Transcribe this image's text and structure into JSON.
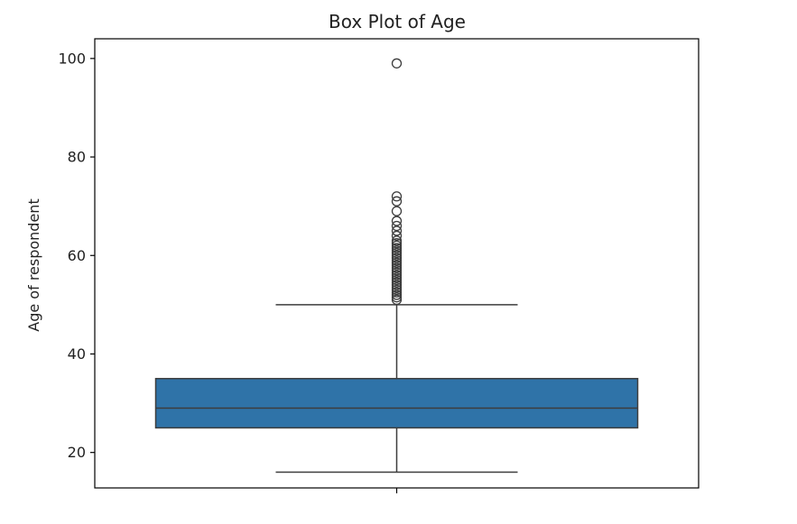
{
  "chart_data": {
    "type": "box",
    "title": "Box Plot of Age",
    "xlabel": "",
    "ylabel": "Age of respondent",
    "ylim": [
      12.8,
      104
    ],
    "yticks": [
      20,
      40,
      60,
      80,
      100
    ],
    "grid": false,
    "box": {
      "q1": 25,
      "median": 29,
      "q3": 35,
      "whisker_low": 16,
      "whisker_high": 50,
      "color": "#2f73a8",
      "edge_color": "#3d3d3d"
    },
    "outliers": [
      51,
      51.5,
      52,
      52.5,
      53,
      53.5,
      54,
      54.5,
      55,
      55.5,
      56,
      56.5,
      57,
      57.5,
      58,
      58.5,
      59,
      59.5,
      60,
      60.5,
      61,
      61.5,
      62,
      62.5,
      63,
      64,
      65,
      66,
      67,
      69,
      71,
      72,
      99
    ]
  }
}
